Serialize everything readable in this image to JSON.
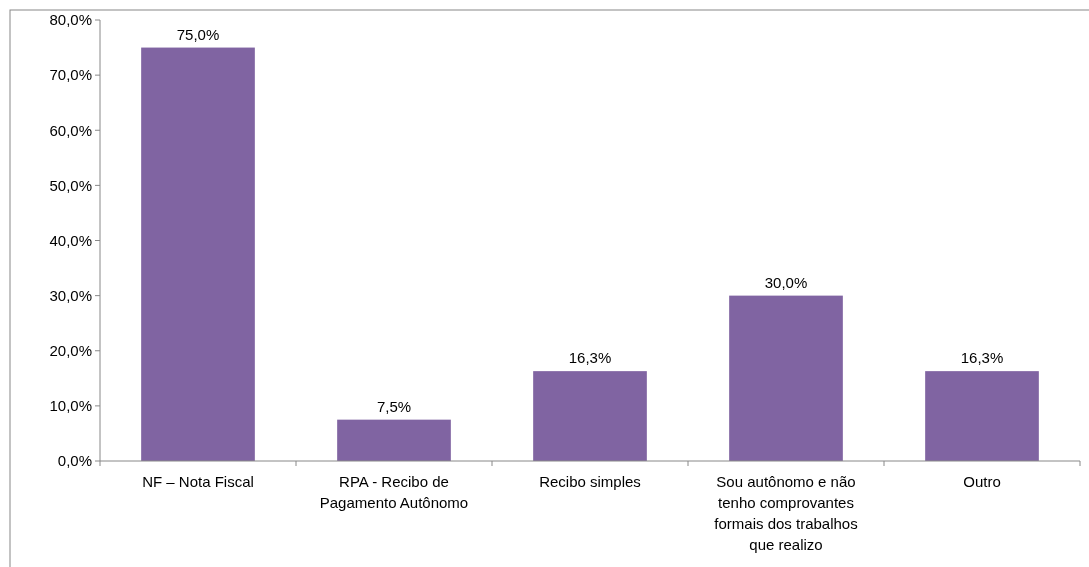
{
  "chart_data": {
    "type": "bar",
    "categories": [
      "NF – Nota Fiscal",
      "RPA - Recibo de Pagamento Autônomo",
      "Recibo simples",
      "Sou autônomo e não tenho comprovantes formais dos trabalhos que realizo",
      "Outro"
    ],
    "values": [
      75.0,
      7.5,
      16.3,
      30.0,
      16.3
    ],
    "color": "#8064a2",
    "value_labels": [
      "75,0%",
      "7,5%",
      "16,3%",
      "30,0%",
      "16,3%"
    ],
    "ylim": [
      0,
      80
    ],
    "yticks": [
      {
        "value": 0,
        "label": "0,0%"
      },
      {
        "value": 10,
        "label": "10,0%"
      },
      {
        "value": 20,
        "label": "20,0%"
      },
      {
        "value": 30,
        "label": "30,0%"
      },
      {
        "value": 40,
        "label": "40,0%"
      },
      {
        "value": 50,
        "label": "50,0%"
      },
      {
        "value": 60,
        "label": "60,0%"
      },
      {
        "value": 70,
        "label": "70,0%"
      },
      {
        "value": 80,
        "label": "80,0%"
      }
    ]
  }
}
